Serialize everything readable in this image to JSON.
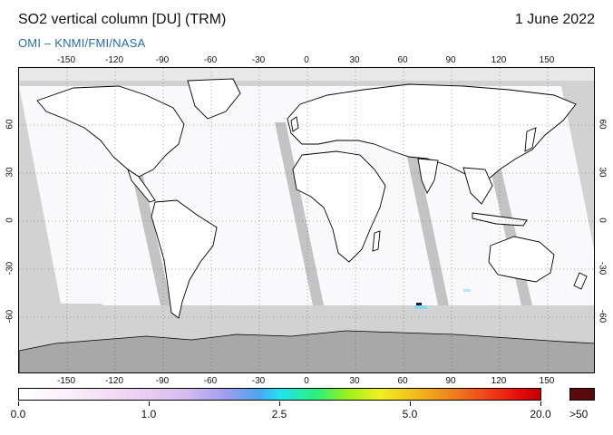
{
  "header": {
    "title": "SO2 vertical column [DU] (TRM)",
    "date": "1 June 2022",
    "credit": "OMI  –  KNMI/FMI/NASA"
  },
  "map": {
    "longitude_ticks": [
      "-150",
      "-120",
      "-90",
      "-60",
      "-30",
      "0",
      "30",
      "60",
      "90",
      "120",
      "150"
    ],
    "latitude_ticks": [
      "60",
      "30",
      "0",
      "-30",
      "-60"
    ],
    "land_color": "#ffffff",
    "no_data_color": "#d2d2d2",
    "swath_gap_color": "#b0b0b0",
    "antarctica_color": "#a8a8a8",
    "coastline_color": "#000000",
    "grid_style": "dotted"
  },
  "legend": {
    "labels": [
      "0.0",
      "1.0",
      "2.5",
      "5.0",
      "20.0"
    ],
    "overflow_label": ">50",
    "overflow_color": "#5a0a0a",
    "min_color": "#ffffff",
    "max_color": "#c00000"
  }
}
